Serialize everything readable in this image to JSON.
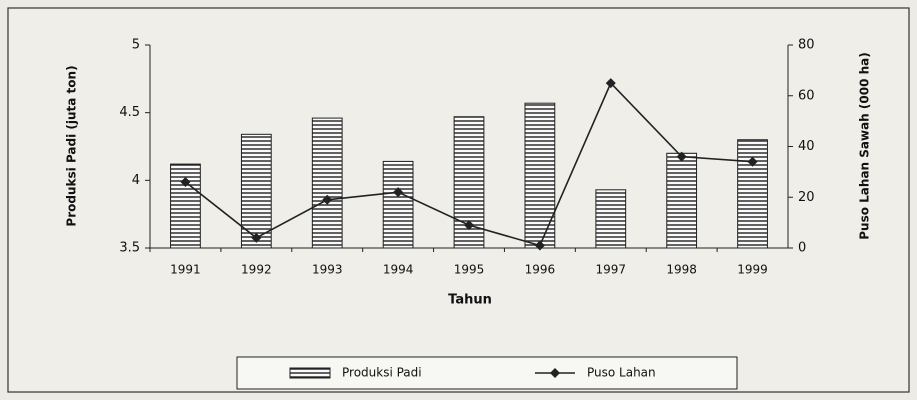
{
  "chart_data": {
    "type": "bar",
    "categories": [
      "1991",
      "1992",
      "1993",
      "1994",
      "1995",
      "1996",
      "1997",
      "1998",
      "1999"
    ],
    "series": [
      {
        "name": "Produksi Padi",
        "type": "bar",
        "color": "#222222",
        "values": [
          4.12,
          4.34,
          4.46,
          4.14,
          4.47,
          4.57,
          3.93,
          4.2,
          4.3
        ]
      },
      {
        "name": "Puso Lahan",
        "type": "line",
        "axis": "y2",
        "color": "#222222",
        "values": [
          26,
          4,
          19,
          22,
          9,
          1,
          65,
          36,
          34
        ]
      }
    ],
    "xlabel": "Tahun",
    "ylabel": "Produksi Padi (juta ton)",
    "y2label": "Puso Lahan Sawah (000 ha)",
    "ylim": [
      3.5,
      5
    ],
    "yticks": [
      3.5,
      4,
      4.5,
      5
    ],
    "y2lim": [
      0,
      80
    ],
    "y2ticks": [
      0,
      20,
      40,
      60,
      80
    ],
    "grid": false,
    "legend": "bottom"
  }
}
